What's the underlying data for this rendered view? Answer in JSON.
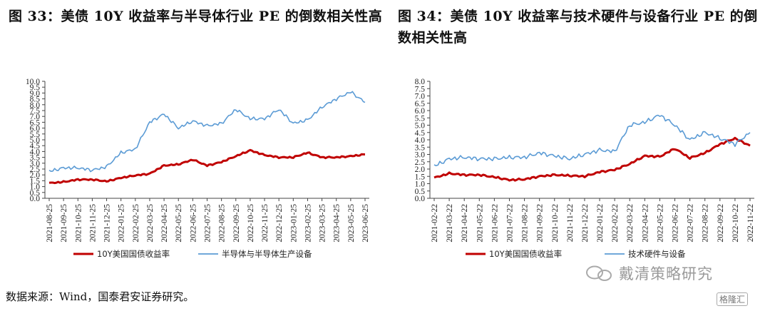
{
  "figures": [
    {
      "title": "图 33：美债 10Y 收益率与半导体行业 PE 的倒数相关性高"
    },
    {
      "title": "图 34：美债 10Y 收益率与技术硬件与设备行业 PE 的倒数相关性高"
    }
  ],
  "source_note": "数据来源：Wind，国泰君安证券研究。",
  "watermark": "戴清策略研究",
  "watermark_badge": "格隆汇",
  "chart_data": [
    {
      "type": "line",
      "ylim": [
        0,
        10
      ],
      "yticks": [
        "0.0",
        "0.5",
        "1.0",
        "1.5",
        "2.0",
        "2.5",
        "3.0",
        "3.5",
        "4.0",
        "4.5",
        "5.0",
        "5.5",
        "6.0",
        "6.5",
        "7.0",
        "7.5",
        "8.0",
        "8.5",
        "9.0",
        "9.5",
        "10.0"
      ],
      "categories": [
        "2021-08-25",
        "2021-09-25",
        "2021-10-25",
        "2021-11-25",
        "2021-12-25",
        "2022-01-25",
        "2022-02-25",
        "2022-03-25",
        "2022-04-25",
        "2022-05-25",
        "2022-06-25",
        "2022-07-25",
        "2022-08-25",
        "2022-09-25",
        "2022-10-25",
        "2022-11-25",
        "2022-12-25",
        "2023-01-25",
        "2023-02-25",
        "2023-03-25",
        "2023-04-25",
        "2023-05-25",
        "2023-06-25"
      ],
      "legend_position": "bottom",
      "series": [
        {
          "name": "10Y美国国债收益率",
          "color": "#c00000",
          "values": [
            1.3,
            1.4,
            1.6,
            1.6,
            1.45,
            1.75,
            1.95,
            2.1,
            2.8,
            2.9,
            3.3,
            2.8,
            3.1,
            3.6,
            4.1,
            3.7,
            3.5,
            3.5,
            3.9,
            3.5,
            3.5,
            3.6,
            3.75
          ]
        },
        {
          "name": "半导体与半导体生产设备",
          "color": "#5b9bd5",
          "values": [
            2.3,
            2.6,
            2.6,
            2.4,
            2.7,
            3.9,
            4.2,
            6.5,
            7.2,
            6.0,
            6.6,
            6.2,
            6.4,
            7.6,
            6.8,
            6.8,
            7.6,
            6.4,
            6.7,
            7.8,
            8.5,
            9.1,
            8.2
          ]
        }
      ]
    },
    {
      "type": "line",
      "ylim": [
        0,
        8
      ],
      "yticks": [
        "0.0",
        "0.5",
        "1.0",
        "1.5",
        "2.0",
        "2.5",
        "3.0",
        "3.5",
        "4.0",
        "4.5",
        "5.0",
        "5.5",
        "6.0",
        "6.5",
        "7.0",
        "7.5",
        "8.0"
      ],
      "categories": [
        "2021-02-22",
        "2021-03-22",
        "2021-04-22",
        "2021-05-22",
        "2021-06-22",
        "2021-07-22",
        "2021-08-22",
        "2021-09-22",
        "2021-10-22",
        "2021-11-22",
        "2021-12-22",
        "2022-01-22",
        "2022-02-22",
        "2022-03-22",
        "2022-04-22",
        "2022-05-22",
        "2022-06-22",
        "2022-07-22",
        "2022-08-22",
        "2022-09-22",
        "2022-10-22",
        "2022-11-22"
      ],
      "legend_position": "bottom",
      "series": [
        {
          "name": "10Y美国国债收益率",
          "color": "#c00000",
          "values": [
            1.4,
            1.7,
            1.6,
            1.6,
            1.45,
            1.25,
            1.3,
            1.5,
            1.6,
            1.55,
            1.5,
            1.8,
            1.95,
            2.35,
            2.9,
            2.85,
            3.4,
            2.75,
            3.1,
            3.7,
            4.1,
            3.6
          ]
        },
        {
          "name": "技术硬件与设备",
          "color": "#5b9bd5",
          "values": [
            2.2,
            2.7,
            2.8,
            2.7,
            2.7,
            2.8,
            2.8,
            3.1,
            2.9,
            2.7,
            3.0,
            3.3,
            3.2,
            5.0,
            5.2,
            5.7,
            5.0,
            4.0,
            4.5,
            4.1,
            3.7,
            4.5
          ]
        }
      ]
    }
  ]
}
